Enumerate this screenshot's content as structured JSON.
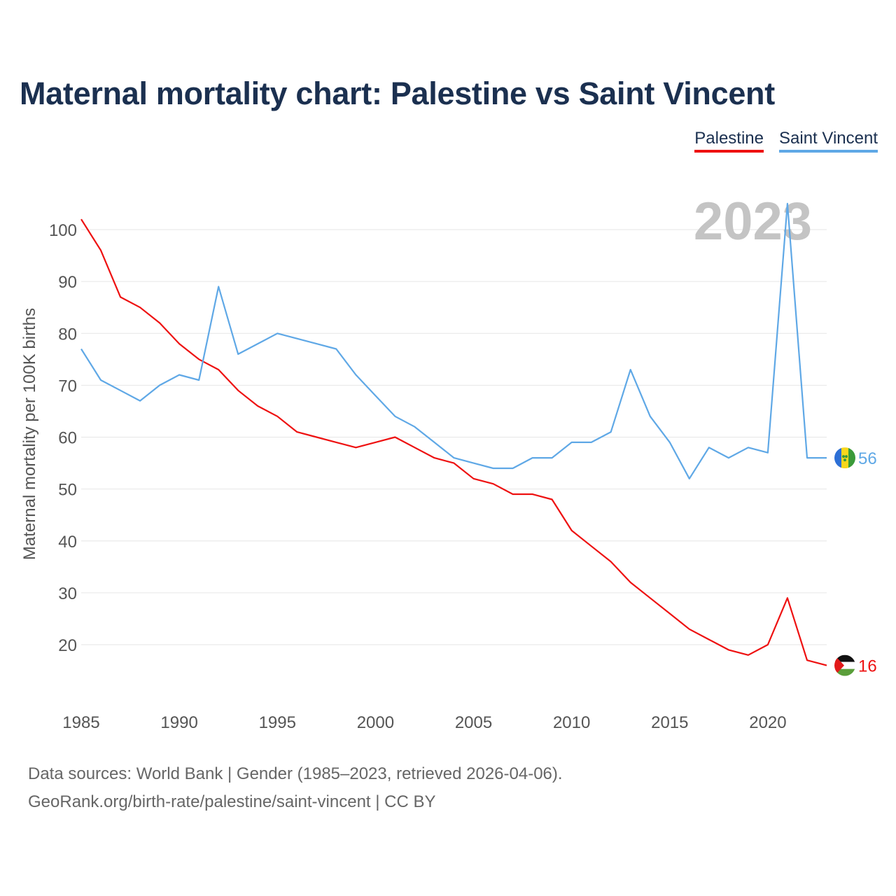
{
  "title": "Maternal mortality chart: Palestine vs Saint Vincent",
  "legend": [
    "Palestine",
    "Saint Vincent"
  ],
  "footer": {
    "line1": "Data sources: World Bank | Gender (1985–2023, retrieved 2026-04-06).",
    "line2": "GeoRank.org/birth-rate/palestine/saint-vincent | CC BY"
  },
  "colors": {
    "palestine": "#ee1111",
    "saint_vincent": "#5fa8e6",
    "title": "#1b3050"
  },
  "chart_data": {
    "type": "line",
    "ylabel": "Maternal mortality per 100K births",
    "xlabel": "",
    "year_label": "2023",
    "xlim": [
      1985,
      2023
    ],
    "ylim": [
      10,
      105
    ],
    "yticks": [
      20,
      30,
      40,
      50,
      60,
      70,
      80,
      90,
      100
    ],
    "xticks": [
      1985,
      1990,
      1995,
      2000,
      2005,
      2010,
      2015,
      2020
    ],
    "x": [
      1985,
      1986,
      1987,
      1988,
      1989,
      1990,
      1991,
      1992,
      1993,
      1994,
      1995,
      1996,
      1997,
      1998,
      1999,
      2000,
      2001,
      2002,
      2003,
      2004,
      2005,
      2006,
      2007,
      2008,
      2009,
      2010,
      2011,
      2012,
      2013,
      2014,
      2015,
      2016,
      2017,
      2018,
      2019,
      2020,
      2021,
      2022,
      2023
    ],
    "series": [
      {
        "name": "Palestine",
        "color": "#ee1111",
        "end_label": "16",
        "values": [
          102,
          96,
          87,
          85,
          82,
          78,
          75,
          73,
          69,
          66,
          64,
          61,
          60,
          59,
          58,
          59,
          60,
          58,
          56,
          55,
          52,
          51,
          49,
          49,
          48,
          42,
          39,
          36,
          32,
          29,
          26,
          23,
          21,
          19,
          18,
          20,
          29,
          17,
          16
        ]
      },
      {
        "name": "Saint Vincent",
        "color": "#5fa8e6",
        "end_label": "56",
        "values": [
          77,
          71,
          69,
          67,
          70,
          72,
          71,
          89,
          76,
          78,
          80,
          79,
          78,
          77,
          72,
          68,
          64,
          62,
          59,
          56,
          55,
          54,
          54,
          56,
          56,
          59,
          59,
          61,
          73,
          64,
          59,
          52,
          58,
          56,
          58,
          57,
          105,
          56,
          56
        ]
      }
    ]
  }
}
